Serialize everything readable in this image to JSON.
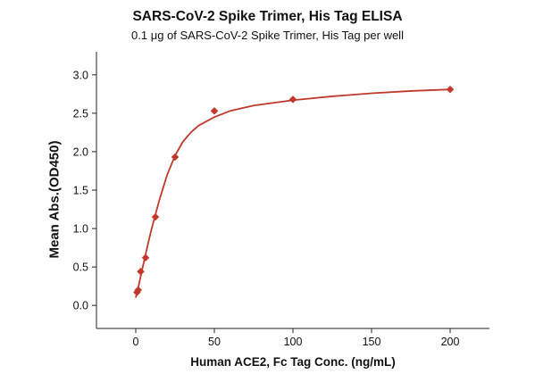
{
  "chart_data": {
    "type": "scatter",
    "title": "SARS-CoV-2 Spike Trimer, His Tag ELISA",
    "subtitle": "0.1 μg of SARS-CoV-2 Spike Trimer, His Tag per well",
    "xlabel": "Human ACE2, Fc Tag Conc. (ng/mL)",
    "ylabel": "Mean Abs.(OD450)",
    "xlim": [
      -25,
      225
    ],
    "ylim": [
      -0.3,
      3.3
    ],
    "x_ticks": [
      0,
      50,
      100,
      150,
      200
    ],
    "x_tick_labels": [
      "0",
      "50",
      "100",
      "150",
      "200"
    ],
    "y_ticks": [
      0.0,
      0.5,
      1.0,
      1.5,
      2.0,
      2.5,
      3.0
    ],
    "y_tick_labels": [
      "0.0",
      "0.5",
      "1.0",
      "1.5",
      "2.0",
      "2.5",
      "3.0"
    ],
    "grid": false,
    "series": [
      {
        "color": "#c0392b",
        "marker": "diamond",
        "points": [
          {
            "x": 0.78,
            "y": 0.17
          },
          {
            "x": 1.56,
            "y": 0.2
          },
          {
            "x": 3.13,
            "y": 0.44
          },
          {
            "x": 6.25,
            "y": 0.62
          },
          {
            "x": 12.5,
            "y": 1.15
          },
          {
            "x": 25,
            "y": 1.93
          },
          {
            "x": 50,
            "y": 2.53
          },
          {
            "x": 100,
            "y": 2.68
          },
          {
            "x": 200,
            "y": 2.81
          }
        ],
        "fit_curve": [
          {
            "x": 0,
            "y": 0.1
          },
          {
            "x": 2,
            "y": 0.27
          },
          {
            "x": 4,
            "y": 0.46
          },
          {
            "x": 6,
            "y": 0.64
          },
          {
            "x": 8,
            "y": 0.82
          },
          {
            "x": 10,
            "y": 0.99
          },
          {
            "x": 12.5,
            "y": 1.18
          },
          {
            "x": 15,
            "y": 1.37
          },
          {
            "x": 20,
            "y": 1.7
          },
          {
            "x": 25,
            "y": 1.95
          },
          {
            "x": 30,
            "y": 2.13
          },
          {
            "x": 35,
            "y": 2.25
          },
          {
            "x": 40,
            "y": 2.34
          },
          {
            "x": 50,
            "y": 2.45
          },
          {
            "x": 60,
            "y": 2.53
          },
          {
            "x": 75,
            "y": 2.6
          },
          {
            "x": 100,
            "y": 2.67
          },
          {
            "x": 125,
            "y": 2.72
          },
          {
            "x": 150,
            "y": 2.76
          },
          {
            "x": 175,
            "y": 2.79
          },
          {
            "x": 200,
            "y": 2.81
          }
        ]
      }
    ]
  }
}
